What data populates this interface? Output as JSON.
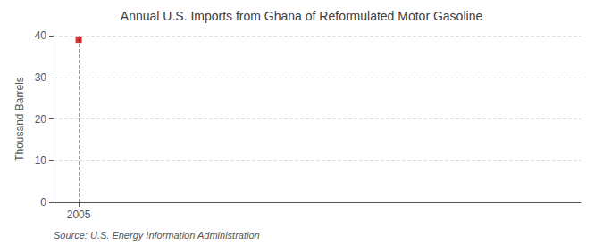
{
  "chart_data": {
    "type": "scatter",
    "title": "Annual U.S. Imports from Ghana of Reformulated Motor Gasoline",
    "ylabel": "Thousand Barrels",
    "source": "Source: U.S. Energy Information Administration",
    "x": [
      2005
    ],
    "values": [
      39
    ],
    "color": "#cc0000",
    "marker": "square",
    "xlim": [
      2004.2,
      2021
    ],
    "xticks": [
      2005
    ],
    "ylim": [
      0,
      40
    ],
    "yticks": [
      0,
      10,
      20,
      30,
      40
    ],
    "grid": true
  }
}
